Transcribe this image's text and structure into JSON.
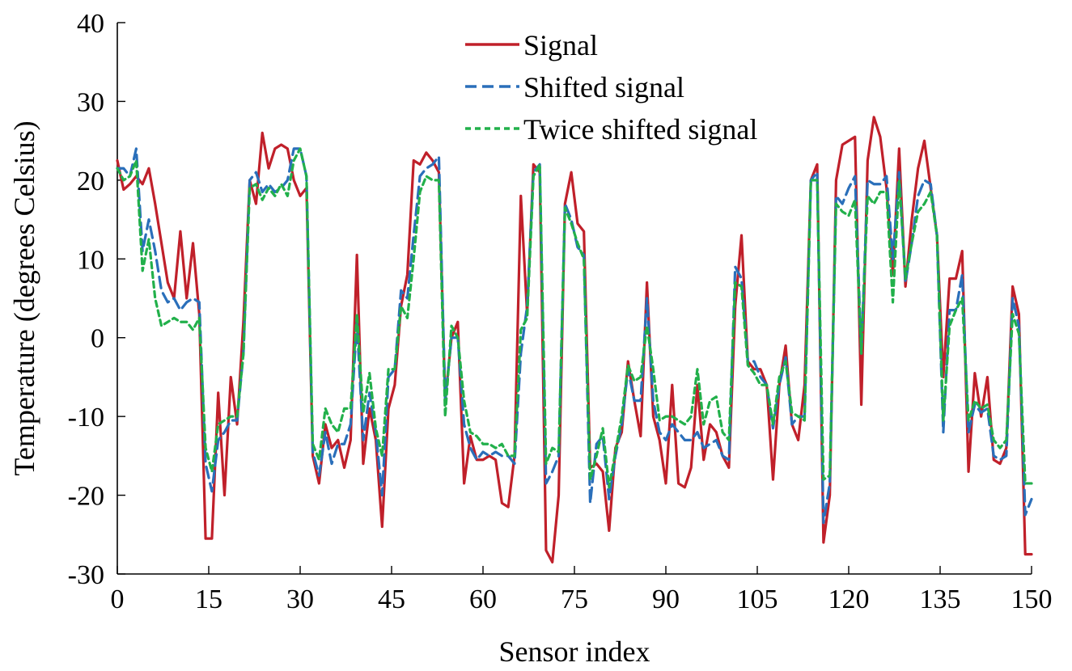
{
  "chart_data": {
    "type": "line",
    "xlabel": "Sensor index",
    "ylabel": "Temperature (degrees Celsius)",
    "xlim": [
      0,
      150
    ],
    "ylim": [
      -30,
      40
    ],
    "xticks": [
      0,
      15,
      30,
      45,
      60,
      75,
      90,
      105,
      120,
      135,
      150
    ],
    "yticks": [
      -30,
      -20,
      -10,
      0,
      10,
      20,
      30,
      40
    ],
    "grid": false,
    "legend_position": "top-center",
    "series": [
      {
        "name": "Signal",
        "color": "#c0202a",
        "dash": "solid",
        "values": [
          22.5,
          18.8,
          19.5,
          20.5,
          19.5,
          21.5,
          17,
          12,
          7,
          5,
          13.5,
          5,
          12,
          3,
          -25.5,
          -25.5,
          -7,
          -20,
          -5,
          -11,
          2,
          20,
          17,
          26,
          21.5,
          24,
          24.5,
          24,
          20,
          18,
          19,
          -15,
          -18.5,
          -11,
          -14,
          -13,
          -16.5,
          -13,
          10.5,
          -16,
          -9,
          -13,
          -24,
          -9,
          -6,
          4,
          8,
          22.5,
          22,
          23.5,
          22.5,
          21,
          -8,
          0,
          2,
          -18.5,
          -12.5,
          -15.5,
          -15.5,
          -15,
          -15.5,
          -21,
          -21.5,
          -15,
          18,
          3,
          22,
          21,
          -27,
          -28.5,
          -20,
          17,
          21,
          14.5,
          13.5,
          -16.5,
          -16,
          -17,
          -24.5,
          -14,
          -12,
          -3,
          -8,
          -12.5,
          7,
          -10,
          -13,
          -18.5,
          -6,
          -18.5,
          -19,
          -16.5,
          -6,
          -15.5,
          -11,
          -12,
          -15,
          -16.5,
          4,
          13,
          -3,
          -4,
          -4,
          -6,
          -18,
          -6,
          -1,
          -11,
          -13,
          -6,
          20,
          22,
          -26,
          -20,
          20,
          24.5,
          25,
          25.5,
          -8.5,
          22.5,
          28,
          25.5,
          19,
          8,
          24,
          6.5,
          15,
          21.5,
          25,
          19,
          13,
          -5,
          7.5,
          7.5,
          11,
          -17,
          -4.5,
          -10,
          -5,
          -15.5,
          -16,
          -14,
          6.5,
          3,
          -27.5,
          -27.5
        ]
      },
      {
        "name": "Shifted signal",
        "color": "#2a6fba",
        "dash": "dashed",
        "values": [
          21.5,
          21.5,
          20.5,
          24,
          11,
          15,
          11,
          6,
          4.5,
          5,
          3.5,
          4.5,
          5,
          4.5,
          -16,
          -19.5,
          -13,
          -12,
          -10.5,
          -10.5,
          -2,
          20,
          21,
          18.5,
          19.5,
          18.5,
          19,
          20,
          24,
          24,
          20.5,
          -14.5,
          -17.5,
          -12,
          -16,
          -13.5,
          -13.5,
          -11,
          2,
          -13,
          -7,
          -12,
          -20,
          -5,
          -4,
          6,
          5,
          13,
          20.5,
          21.5,
          22,
          23,
          -8,
          0,
          0,
          -11,
          -14,
          -15.5,
          -14.5,
          -15,
          -14.5,
          -15,
          -15,
          -16,
          -2,
          4,
          21,
          22,
          -18.5,
          -17,
          -15,
          17,
          15,
          11.5,
          10.5,
          -21,
          -13.5,
          -12.5,
          -20.5,
          -15,
          -11,
          -4,
          -8,
          -8,
          5,
          -8,
          -12,
          -13,
          -11,
          -12,
          -13,
          -13,
          -12,
          -14,
          -13.5,
          -13,
          -15,
          -15.5,
          9,
          7.5,
          -3,
          -3,
          -5,
          -6,
          -11.5,
          -6,
          -2.5,
          -11,
          -10,
          -10,
          20,
          21,
          -23.5,
          -18.5,
          18,
          17,
          19,
          20.5,
          -2,
          20,
          19.5,
          19.5,
          20.5,
          10,
          21,
          7,
          12,
          18,
          20,
          19.5,
          13,
          -12,
          3.5,
          3.5,
          8,
          -12,
          -8.5,
          -9.5,
          -9,
          -15,
          -15.5,
          -15,
          5,
          1.5,
          -22.5,
          -20.5
        ]
      },
      {
        "name": "Twice shifted signal",
        "color": "#22b04b",
        "dash": "dotted",
        "values": [
          21.5,
          20,
          20.5,
          22.5,
          8.5,
          12.5,
          5,
          1.5,
          2,
          2.5,
          2,
          2,
          1,
          2.5,
          -14,
          -17,
          -11,
          -10.5,
          -10,
          -10,
          -2,
          19,
          19.5,
          17.5,
          19,
          18,
          19.5,
          18,
          22.5,
          24,
          20.5,
          -13.5,
          -15.5,
          -9,
          -11,
          -12,
          -9,
          -9,
          3,
          -9.5,
          -4.5,
          -11.5,
          -15,
          -4,
          -4,
          4,
          2.5,
          10,
          18.5,
          20.5,
          20,
          20,
          -10,
          1.5,
          0,
          -8,
          -12,
          -12.5,
          -13.5,
          -13.5,
          -14,
          -13.5,
          -15,
          -15,
          1,
          2.5,
          20.5,
          22,
          -16,
          -14,
          -14.5,
          16.5,
          14.5,
          12,
          10,
          -18,
          -15,
          -11.5,
          -19,
          -14.5,
          -10,
          -3.5,
          -5.5,
          -5,
          1.5,
          -4,
          -10.5,
          -10,
          -10,
          -10.5,
          -11,
          -10,
          -4,
          -11,
          -8,
          -7.5,
          -12,
          -13,
          7,
          6.5,
          -3.5,
          -4.5,
          -6,
          -6,
          -11,
          -5,
          -3,
          -9.5,
          -10,
          -10.5,
          20,
          20,
          -18,
          -17.5,
          17,
          16,
          15.5,
          17.5,
          -2,
          18,
          17,
          18.5,
          18.5,
          4.5,
          20,
          7.5,
          12,
          16,
          17,
          18.5,
          13,
          -10.5,
          1.5,
          3.5,
          5,
          -10.5,
          -8,
          -9,
          -8.5,
          -13,
          -14,
          -13,
          3,
          0.5,
          -18.5,
          -18.5
        ]
      }
    ]
  }
}
